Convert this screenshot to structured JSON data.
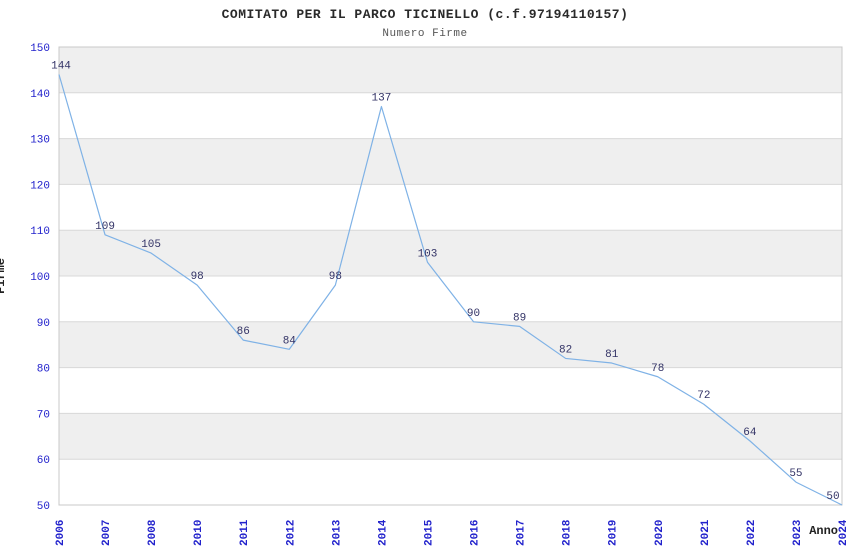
{
  "chart": {
    "title": "COMITATO PER IL PARCO TICINELLO (c.f.97194110157)",
    "subtitle": "Numero Firme",
    "xlabel": "Anno",
    "ylabel": "Firme"
  },
  "chart_data": {
    "type": "line",
    "title": "COMITATO PER IL PARCO TICINELLO (c.f.97194110157)",
    "subtitle": "Numero Firme",
    "xlabel": "Anno",
    "ylabel": "Firme",
    "categories": [
      "2006",
      "2007",
      "2008",
      "2010",
      "2011",
      "2012",
      "2013",
      "2014",
      "2015",
      "2016",
      "2017",
      "2018",
      "2019",
      "2020",
      "2021",
      "2022",
      "2023",
      "2024"
    ],
    "values": [
      144,
      109,
      105,
      98,
      86,
      84,
      98,
      137,
      103,
      90,
      89,
      82,
      81,
      78,
      72,
      64,
      55,
      50
    ],
    "ylim": [
      50,
      150
    ],
    "ytick_step": 10,
    "grid": "horizontal",
    "legend_position": "none",
    "colors": {
      "line": "#7FB2E6",
      "data_label": "#333366",
      "tick_label": "#2222CC",
      "band_gray": "#EFEFEF",
      "band_white": "#FFFFFF",
      "grid_line": "#D8D8D8",
      "plot_border": "#C8C8C8",
      "title": "#2A2A2A",
      "subtitle": "#555555",
      "axis_title": "#222222"
    }
  }
}
